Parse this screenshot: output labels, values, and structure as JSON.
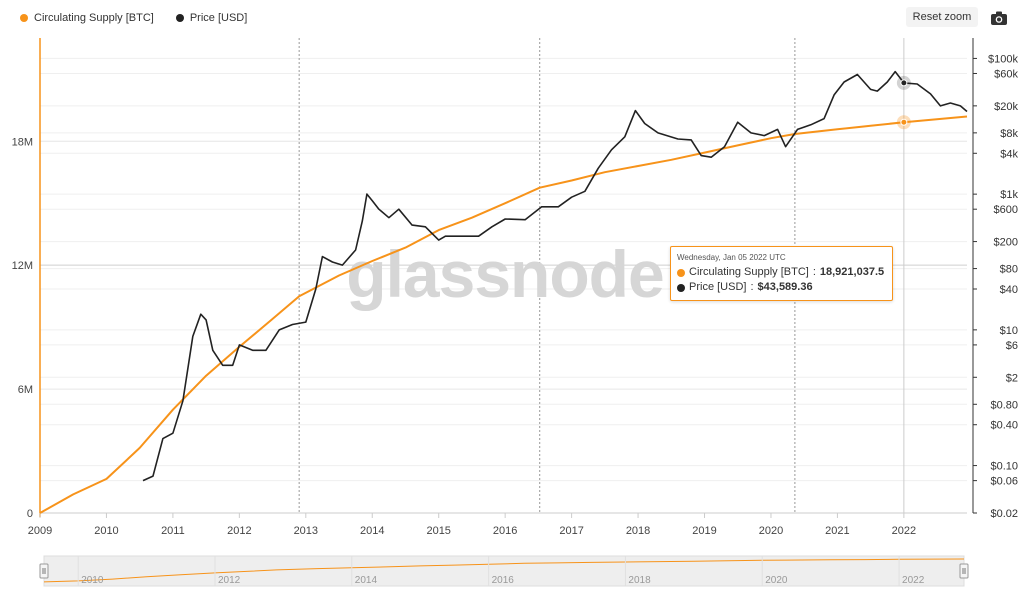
{
  "legend": [
    {
      "label": "Circulating Supply [BTC]",
      "color": "#f7931a"
    },
    {
      "label": "Price [USD]",
      "color": "#222222"
    }
  ],
  "toolbar": {
    "reset_zoom": "Reset zoom",
    "camera_icon": "camera-icon"
  },
  "watermark": "glassnode",
  "tooltip": {
    "date": "Wednesday, Jan 05 2022 UTC",
    "supply_label": "Circulating Supply [BTC]",
    "supply_value": "18,921,037.5",
    "price_label": "Price [USD]",
    "price_value": "$43,589.36"
  },
  "navigator": {
    "labels": [
      "2010",
      "2012",
      "2014",
      "2016",
      "2018",
      "2020",
      "2022"
    ]
  },
  "chart_data": {
    "type": "line",
    "title": "",
    "xlabel": "",
    "x_ticks": [
      "2009",
      "2010",
      "2011",
      "2012",
      "2013",
      "2014",
      "2015",
      "2016",
      "2017",
      "2018",
      "2019",
      "2020",
      "2021",
      "2022"
    ],
    "x_range": [
      2009.0,
      2022.95
    ],
    "halving_lines": [
      2012.9,
      2016.52,
      2020.36,
      2022.0
    ],
    "left_axis": {
      "label": "Circulating Supply [BTC]",
      "ticks": [
        0,
        6000000,
        12000000,
        18000000
      ],
      "tick_labels": [
        "0",
        "6M",
        "12M",
        "18M"
      ],
      "range": [
        0,
        23000000
      ]
    },
    "right_axis": {
      "label": "Price [USD]",
      "scale": "log",
      "ticks": [
        0.02,
        0.06,
        0.1,
        0.4,
        0.8,
        2,
        6,
        10,
        40,
        80,
        200,
        600,
        1000,
        4000,
        8000,
        20000,
        60000,
        100000
      ],
      "tick_labels": [
        "$0.02",
        "$0.06",
        "$0.10",
        "$0.40",
        "$0.80",
        "$2",
        "$6",
        "$10",
        "$40",
        "$80",
        "$200",
        "$600",
        "$1k",
        "$4k",
        "$8k",
        "$20k",
        "$60k",
        "$100k"
      ],
      "range": [
        0.02,
        200000
      ]
    },
    "series": [
      {
        "name": "Circulating Supply [BTC]",
        "color": "#f7931a",
        "axis": "left",
        "x": [
          2009.0,
          2009.5,
          2010.0,
          2010.5,
          2011.0,
          2011.5,
          2012.0,
          2012.5,
          2012.9,
          2013.5,
          2014.0,
          2014.5,
          2015.0,
          2015.5,
          2016.0,
          2016.52,
          2017.0,
          2017.5,
          2018.0,
          2018.5,
          2019.0,
          2019.5,
          2020.0,
          2020.36,
          2021.0,
          2021.5,
          2022.0,
          2022.95
        ],
        "y": [
          0,
          900000,
          1650000,
          3150000,
          5000000,
          6650000,
          8050000,
          9400000,
          10500000,
          11500000,
          12200000,
          12850000,
          13700000,
          14300000,
          15000000,
          15750000,
          16100000,
          16500000,
          16800000,
          17100000,
          17450000,
          17800000,
          18150000,
          18350000,
          18580000,
          18750000,
          18921037.5,
          19200000
        ]
      },
      {
        "name": "Price [USD]",
        "color": "#222222",
        "axis": "right",
        "x": [
          2010.55,
          2010.7,
          2010.85,
          2011.0,
          2011.15,
          2011.3,
          2011.42,
          2011.5,
          2011.6,
          2011.75,
          2011.9,
          2012.0,
          2012.2,
          2012.4,
          2012.6,
          2012.8,
          2013.0,
          2013.15,
          2013.25,
          2013.4,
          2013.55,
          2013.75,
          2013.85,
          2013.92,
          2014.0,
          2014.1,
          2014.25,
          2014.4,
          2014.6,
          2014.8,
          2015.0,
          2015.1,
          2015.4,
          2015.6,
          2015.8,
          2016.0,
          2016.3,
          2016.55,
          2016.8,
          2017.0,
          2017.2,
          2017.4,
          2017.6,
          2017.8,
          2017.96,
          2018.1,
          2018.3,
          2018.6,
          2018.8,
          2018.95,
          2019.1,
          2019.3,
          2019.5,
          2019.7,
          2019.9,
          2020.1,
          2020.22,
          2020.4,
          2020.6,
          2020.8,
          2020.95,
          2021.1,
          2021.3,
          2021.5,
          2021.6,
          2021.75,
          2021.87,
          2022.0,
          2022.2,
          2022.4,
          2022.55,
          2022.7,
          2022.85,
          2022.95
        ],
        "y": [
          0.06,
          0.07,
          0.25,
          0.3,
          0.9,
          8,
          17,
          14,
          5,
          3,
          3,
          6,
          5,
          5,
          10,
          12,
          13,
          40,
          120,
          100,
          90,
          150,
          400,
          1000,
          800,
          600,
          450,
          600,
          350,
          330,
          210,
          240,
          240,
          240,
          330,
          430,
          420,
          650,
          650,
          900,
          1100,
          2400,
          4500,
          7000,
          17000,
          11000,
          8000,
          6500,
          6300,
          3700,
          3500,
          5000,
          11500,
          8000,
          7300,
          9000,
          5000,
          9000,
          10500,
          13000,
          29000,
          45000,
          58000,
          35000,
          33000,
          45000,
          64000,
          43589,
          42000,
          30000,
          20000,
          22000,
          20000,
          16500
        ]
      }
    ]
  }
}
